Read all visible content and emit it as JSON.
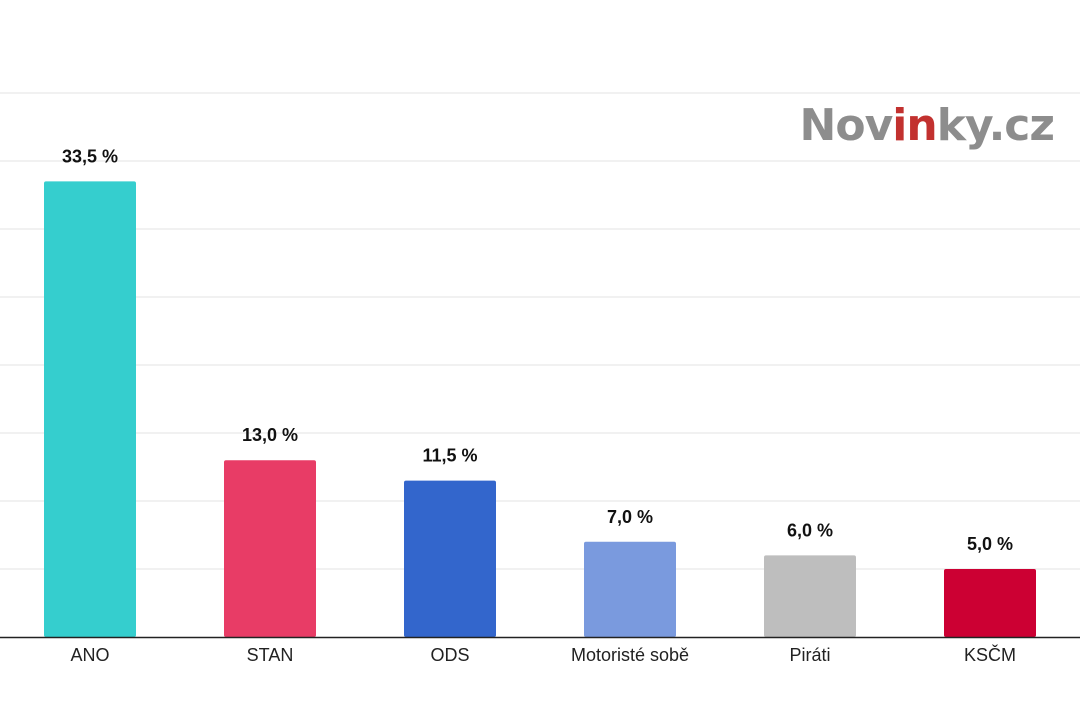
{
  "brand": {
    "logo_prefix": "Nov",
    "logo_highlight": "in",
    "logo_suffix": "ky.cz",
    "logo_color": "#8d8d8d",
    "highlight_color": "#c2312f"
  },
  "chart_data": {
    "type": "bar",
    "title": "",
    "xlabel": "",
    "ylabel": "",
    "ylim": [
      0,
      40
    ],
    "grid": true,
    "categories": [
      "ANO",
      "STAN",
      "ODS",
      "Motoristé sobě",
      "Piráti",
      "KSČM"
    ],
    "values": [
      33.5,
      13.0,
      11.5,
      7.0,
      6.0,
      5.0
    ],
    "value_labels": [
      "33,5 %",
      "13,0 %",
      "11,5 %",
      "7,0 %",
      "6,0 %",
      "5,0 %"
    ],
    "colors": [
      "#35cece",
      "#e83c66",
      "#3366cc",
      "#7a9ade",
      "#bebebe",
      "#cc0033"
    ]
  }
}
